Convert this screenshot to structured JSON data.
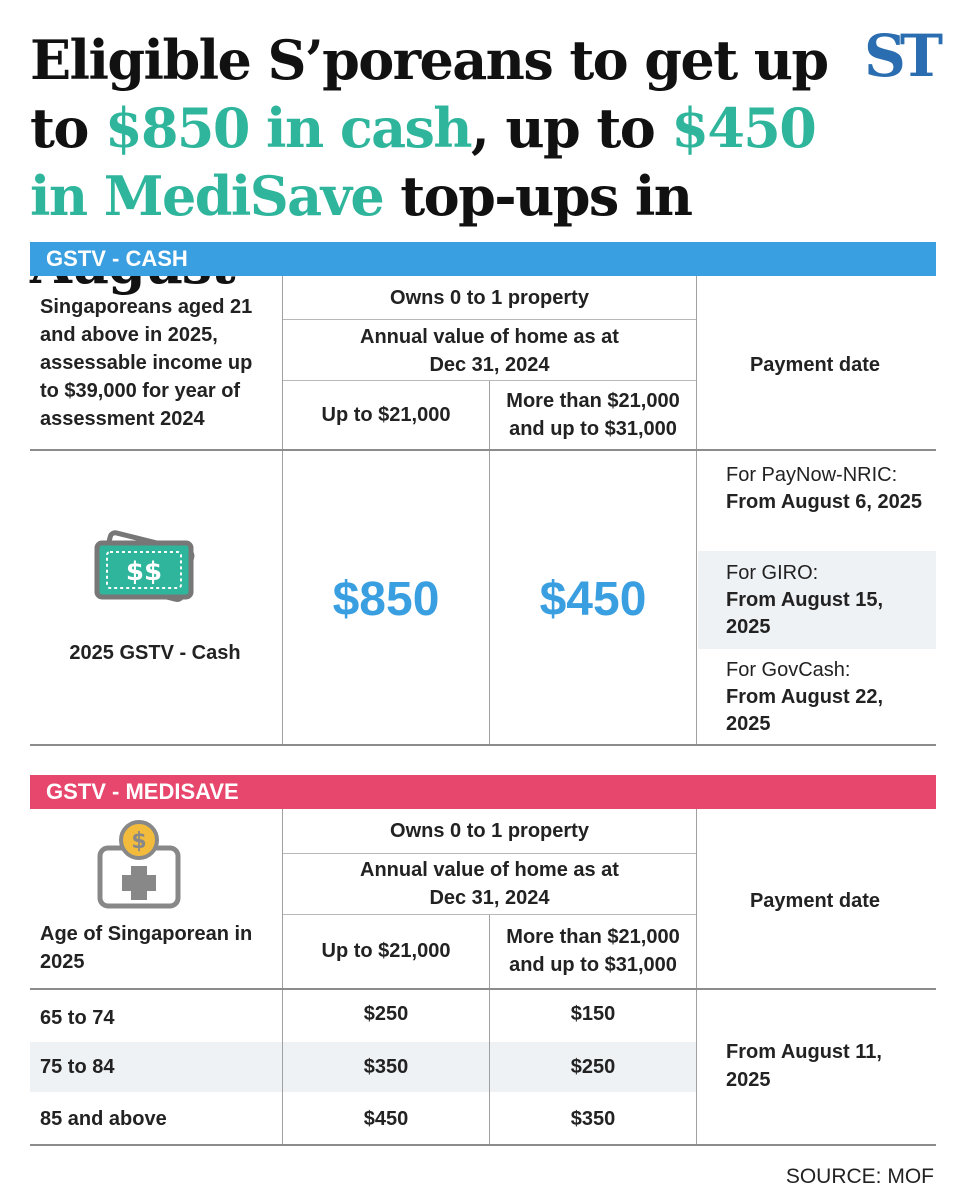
{
  "headline": {
    "line1": "Eligible S’poreans to get up",
    "line2_prefix": "to ",
    "line2_highlight": "$850 in cash",
    "line2_mid": ", up to ",
    "line2_highlight2": "$450",
    "line3_highlight": "in MediSave",
    "line3_suffix": " top-ups in August"
  },
  "logo": {
    "text": "ST",
    "color": "#2a6db0"
  },
  "accent_color": "#2fb59c",
  "cash": {
    "band_title": "GSTV - CASH",
    "band_color": "#3a9fe0",
    "eligibility": "Singaporeans aged 21 and above in 2025, assessable income up to $39,000 for year of assessment 2024",
    "property_header": "Owns 0 to 1 property",
    "annual_value_header": "Annual value of home as at Dec 31, 2024",
    "col1_header": "Up to $21,000",
    "col2_header": "More than $21,000 and up to $31,000",
    "payment_header": "Payment date",
    "item_label": "2025 GSTV - Cash",
    "icon": "cash-notes-icon",
    "amount1": "$850",
    "amount2": "$450",
    "payments": [
      {
        "label": "For PayNow-NRIC:",
        "date": "From August 6, 2025"
      },
      {
        "label": "For GIRO:",
        "date": "From August 15, 2025"
      },
      {
        "label": "For GovCash:",
        "date": "From August 22, 2025"
      }
    ]
  },
  "medisave": {
    "band_title": "GSTV - MEDISAVE",
    "band_color": "#e8476d",
    "icon": "medisave-coin-icon",
    "age_header": "Age of Singaporean in 2025",
    "property_header": "Owns 0 to 1 property",
    "annual_value_header": "Annual value of home as at Dec 31, 2024",
    "col1_header": "Up to $21,000",
    "col2_header": "More than $21,000 and up to $31,000",
    "payment_header": "Payment date",
    "rows": [
      {
        "age": "65 to 74",
        "col1": "$250",
        "col2": "$150"
      },
      {
        "age": "75 to 84",
        "col1": "$350",
        "col2": "$250"
      },
      {
        "age": "85 and above",
        "col1": "$450",
        "col2": "$350"
      }
    ],
    "payment_date": "From August 11, 2025"
  },
  "source": "SOURCE: MOF"
}
